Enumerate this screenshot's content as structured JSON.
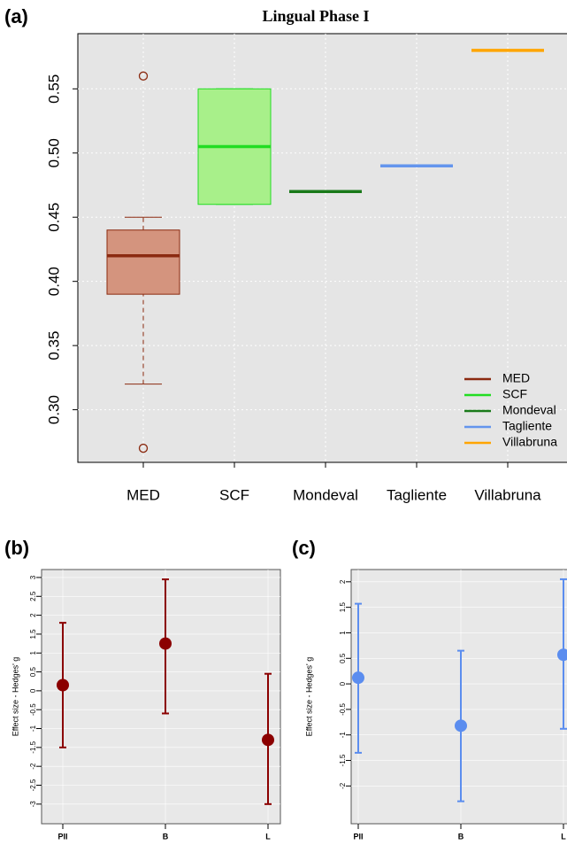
{
  "chart_data": [
    {
      "type": "box",
      "panel_label": "(a)",
      "title": "Lingual Phase I",
      "categories": [
        "MED",
        "SCF",
        "Mondeval",
        "Tagliente",
        "Villabruna"
      ],
      "ylim": [
        0.259,
        0.593
      ],
      "yticks": [
        {
          "value": 0.3,
          "label": "0.30"
        },
        0.35,
        {
          "value": 0.4,
          "label": "0.40"
        },
        0.45,
        {
          "value": 0.5,
          "label": "0.50"
        },
        0.55
      ],
      "grid": true,
      "legend": "lower right",
      "series": [
        {
          "name": "MED",
          "color": "#8b2a10",
          "fill": "#d4947e",
          "whislo": 0.32,
          "q1": 0.39,
          "median": 0.42,
          "q3": 0.44,
          "whishi": 0.45,
          "outliers": [
            0.56,
            0.27
          ]
        },
        {
          "name": "SCF",
          "color": "#22dd22",
          "fill": "#a8f08a",
          "whislo": 0.46,
          "q1": 0.46,
          "median": 0.505,
          "q3": 0.55,
          "whishi": 0.55,
          "outliers": []
        },
        {
          "name": "Mondeval",
          "color": "#1a7a1a",
          "fill": "#1a7a1a",
          "whislo": 0.47,
          "q1": 0.47,
          "median": 0.47,
          "q3": 0.47,
          "whishi": 0.47,
          "outliers": []
        },
        {
          "name": "Tagliente",
          "color": "#6495ed",
          "fill": "#6495ed",
          "whislo": 0.49,
          "q1": 0.49,
          "median": 0.49,
          "q3": 0.49,
          "whishi": 0.49,
          "outliers": []
        },
        {
          "name": "Villabruna",
          "color": "#ffa500",
          "fill": "#ffa500",
          "whislo": 0.58,
          "q1": 0.58,
          "median": 0.58,
          "q3": 0.58,
          "whishi": 0.58,
          "outliers": []
        }
      ]
    },
    {
      "type": "errorbar",
      "panel_label": "(b)",
      "ylabel": "Effect size - Hedges' g",
      "categories": [
        "PII",
        "B",
        "L"
      ],
      "color": "#8b0000",
      "values": [
        0.15,
        1.25,
        -1.3
      ],
      "lower": [
        -1.5,
        -0.6,
        -3.0
      ],
      "upper": [
        1.8,
        2.95,
        0.45
      ],
      "ylim": [
        -3.52,
        3.21
      ],
      "yticks": [
        -3,
        -2.5,
        -2,
        -1.5,
        -1,
        -0.5,
        0,
        0.5,
        1,
        1.5,
        2,
        2.5,
        3
      ],
      "grid": true
    },
    {
      "type": "errorbar",
      "panel_label": "(c)",
      "ylabel": "Effect size - Hedges' g",
      "categories": [
        "PII",
        "B",
        "L"
      ],
      "color": "#5b8def",
      "values": [
        0.12,
        -0.82,
        0.57
      ],
      "lower": [
        -1.35,
        -2.3,
        -0.88
      ],
      "upper": [
        1.57,
        0.65,
        2.05
      ],
      "ylim": [
        -2.74,
        2.24
      ],
      "yticks": [
        -2,
        -1.5,
        -1,
        -0.5,
        0,
        0.5,
        1,
        1.5,
        2
      ],
      "grid": true
    }
  ]
}
